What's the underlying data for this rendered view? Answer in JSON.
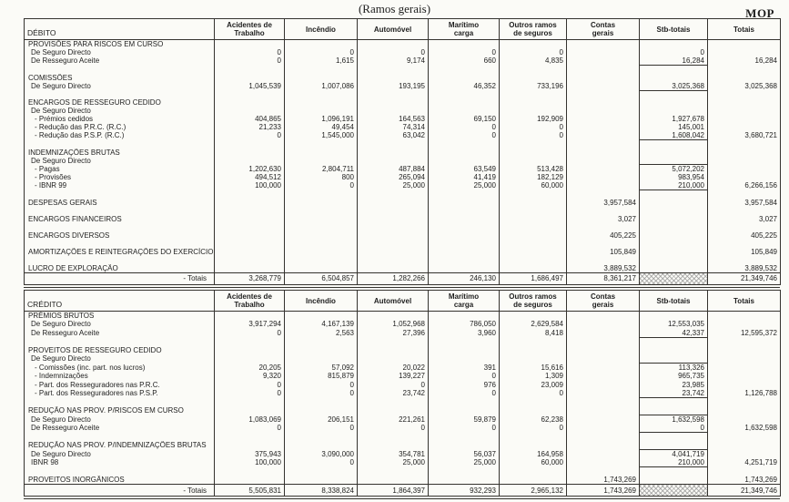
{
  "page": {
    "title": "(Ramos gerais)",
    "currency": "MOP"
  },
  "colors": {
    "paper": "#fbfbf7",
    "ink": "#1e1e1e",
    "line": "#35332f",
    "hatch": "#8f8f8f"
  },
  "columns": [
    "Acidentes de\nTrabalho",
    "Incêndio",
    "Automóvel",
    "Marítimo\ncarga",
    "Outros ramos\nde seguros",
    "Contas\ngerais",
    "Stb-totais",
    "Totais"
  ],
  "tables": [
    {
      "id": "debito",
      "title": "DÉBITO",
      "rows": [
        {
          "type": "section",
          "label": "PROVISÕES PARA RISCOS EM CURSO",
          "values": [
            "",
            "",
            "",
            "",
            "",
            "",
            "",
            ""
          ]
        },
        {
          "type": "item",
          "label": "De Seguro Directo",
          "values": [
            "0",
            "0",
            "0",
            "0",
            "0",
            "",
            "0",
            ""
          ]
        },
        {
          "type": "item",
          "label": "De Resseguro Aceite",
          "values": [
            "0",
            "1,615",
            "9,174",
            "660",
            "4,835",
            "",
            "16,284",
            "16,284"
          ],
          "group_end": true
        },
        {
          "type": "spacer"
        },
        {
          "type": "section",
          "label": "COMISSÕES",
          "values": [
            "",
            "",
            "",
            "",
            "",
            "",
            "",
            ""
          ]
        },
        {
          "type": "item",
          "label": "De Seguro Directo",
          "values": [
            "1,045,539",
            "1,007,086",
            "193,195",
            "46,352",
            "733,196",
            "",
            "3,025,368",
            "3,025,368"
          ],
          "group_end": true
        },
        {
          "type": "spacer"
        },
        {
          "type": "section",
          "label": "ENCARGOS DE RESSEGURO CEDIDO",
          "values": [
            "",
            "",
            "",
            "",
            "",
            "",
            "",
            ""
          ]
        },
        {
          "type": "item",
          "label": "De Seguro Directo",
          "values": [
            "",
            "",
            "",
            "",
            "",
            "",
            "",
            ""
          ]
        },
        {
          "type": "item2",
          "label": "- Prémios cedidos",
          "values": [
            "404,865",
            "1,096,191",
            "164,563",
            "69,150",
            "192,909",
            "",
            "1,927,678",
            ""
          ]
        },
        {
          "type": "item2",
          "label": "- Redução das P.R.C. (R.C.)",
          "values": [
            "21,233",
            "49,454",
            "74,314",
            "0",
            "0",
            "",
            "145,001",
            ""
          ]
        },
        {
          "type": "item2",
          "label": "- Redução das P.S.P. (R.C.)",
          "values": [
            "0",
            "1,545,000",
            "63,042",
            "0",
            "0",
            "",
            "1,608,042",
            "3,680,721"
          ],
          "group_end": true
        },
        {
          "type": "spacer"
        },
        {
          "type": "section",
          "label": "INDEMNIZAÇÕES BRUTAS",
          "values": [
            "",
            "",
            "",
            "",
            "",
            "",
            "",
            ""
          ]
        },
        {
          "type": "item",
          "label": "De Seguro Directo",
          "values": [
            "",
            "",
            "",
            "",
            "",
            "",
            "",
            ""
          ],
          "group_end": true
        },
        {
          "type": "item2",
          "label": "- Pagas",
          "values": [
            "1,202,630",
            "2,804,711",
            "487,884",
            "63,549",
            "513,428",
            "",
            "5,072,202",
            ""
          ]
        },
        {
          "type": "item2",
          "label": "- Provisões",
          "values": [
            "494,512",
            "800",
            "265,094",
            "41,419",
            "182,129",
            "",
            "983,954",
            ""
          ]
        },
        {
          "type": "item2",
          "label": "- IBNR 99",
          "values": [
            "100,000",
            "0",
            "25,000",
            "25,000",
            "60,000",
            "",
            "210,000",
            "6,266,156"
          ],
          "group_end": true
        },
        {
          "type": "spacer"
        },
        {
          "type": "section",
          "label": "DESPESAS GERAIS",
          "values": [
            "",
            "",
            "",
            "",
            "",
            "3,957,584",
            "",
            "3,957,584"
          ]
        },
        {
          "type": "spacer"
        },
        {
          "type": "section",
          "label": "ENCARGOS FINANCEIROS",
          "values": [
            "",
            "",
            "",
            "",
            "",
            "3,027",
            "",
            "3,027"
          ]
        },
        {
          "type": "spacer"
        },
        {
          "type": "section",
          "label": "ENCARGOS DIVERSOS",
          "values": [
            "",
            "",
            "",
            "",
            "",
            "405,225",
            "",
            "405,225"
          ]
        },
        {
          "type": "spacer"
        },
        {
          "type": "section",
          "label": "AMORTIZAÇÕES E REINTEGRAÇÕES DO EXERCÍCIO",
          "values": [
            "",
            "",
            "",
            "",
            "",
            "105,849",
            "",
            "105,849"
          ]
        },
        {
          "type": "spacer"
        },
        {
          "type": "section",
          "label": "LUCRO DE EXPLORAÇÃO",
          "values": [
            "",
            "",
            "",
            "",
            "",
            "3,889,532",
            "",
            "3,889,532"
          ]
        },
        {
          "type": "total",
          "label": "- Totais",
          "values": [
            "3,268,779",
            "6,504,857",
            "1,282,266",
            "246,130",
            "1,686,497",
            "8,361,217",
            "",
            "21,349,746"
          ],
          "hatch_col": 6
        }
      ]
    },
    {
      "id": "credito",
      "title": "CRÉDITO",
      "rows": [
        {
          "type": "section",
          "label": "PRÉMIOS BRUTOS",
          "values": [
            "",
            "",
            "",
            "",
            "",
            "",
            "",
            ""
          ]
        },
        {
          "type": "item",
          "label": "De Seguro Directo",
          "values": [
            "3,917,294",
            "4,167,139",
            "1,052,968",
            "786,050",
            "2,629,584",
            "",
            "12,553,035",
            ""
          ]
        },
        {
          "type": "item",
          "label": "De Resseguro Aceite",
          "values": [
            "0",
            "2,563",
            "27,396",
            "3,960",
            "8,418",
            "",
            "42,337",
            "12,595,372"
          ],
          "group_end": true
        },
        {
          "type": "spacer"
        },
        {
          "type": "section",
          "label": "PROVEITOS DE RESSEGURO CEDIDO",
          "values": [
            "",
            "",
            "",
            "",
            "",
            "",
            "",
            ""
          ]
        },
        {
          "type": "item",
          "label": "De Seguro Directo",
          "values": [
            "",
            "",
            "",
            "",
            "",
            "",
            "",
            ""
          ],
          "group_end": true
        },
        {
          "type": "item2",
          "label": "- Comissões (inc. part. nos lucros)",
          "values": [
            "20,205",
            "57,092",
            "20,022",
            "391",
            "15,616",
            "",
            "113,326",
            ""
          ]
        },
        {
          "type": "item2",
          "label": "- Indemnizações",
          "values": [
            "9,320",
            "815,879",
            "139,227",
            "0",
            "1,309",
            "",
            "965,735",
            ""
          ]
        },
        {
          "type": "item2",
          "label": "- Part. dos Resseguradores nas P.R.C.",
          "values": [
            "0",
            "0",
            "0",
            "976",
            "23,009",
            "",
            "23,985",
            ""
          ]
        },
        {
          "type": "item2",
          "label": "- Part. dos Resseguradores nas P.S.P.",
          "values": [
            "0",
            "0",
            "23,742",
            "0",
            "0",
            "",
            "23,742",
            "1,126,788"
          ],
          "group_end": true
        },
        {
          "type": "spacer"
        },
        {
          "type": "section",
          "label": "REDUÇÃO NAS PROV. P/RISCOS EM CURSO",
          "values": [
            "",
            "",
            "",
            "",
            "",
            "",
            "",
            ""
          ],
          "group_end": true
        },
        {
          "type": "item",
          "label": "De Seguro Directo",
          "values": [
            "1,083,069",
            "206,151",
            "221,261",
            "59,879",
            "62,238",
            "",
            "1,632,598",
            ""
          ]
        },
        {
          "type": "item",
          "label": "De Resseguro Aceite",
          "values": [
            "0",
            "0",
            "0",
            "0",
            "0",
            "",
            "0",
            "1,632,598"
          ],
          "group_end": true
        },
        {
          "type": "spacer"
        },
        {
          "type": "section",
          "label": "REDUÇÃO NAS PROV. P/INDEMNIZAÇÕES BRUTAS",
          "values": [
            "",
            "",
            "",
            "",
            "",
            "",
            "",
            ""
          ],
          "group_end": true
        },
        {
          "type": "item",
          "label": "De Seguro Directo",
          "values": [
            "375,943",
            "3,090,000",
            "354,781",
            "56,037",
            "164,958",
            "",
            "4,041,719",
            ""
          ]
        },
        {
          "type": "item",
          "label": "IBNR 98",
          "values": [
            "100,000",
            "0",
            "25,000",
            "25,000",
            "60,000",
            "",
            "210,000",
            "4,251,719"
          ],
          "group_end": true
        },
        {
          "type": "spacer"
        },
        {
          "type": "section",
          "label": "PROVEITOS INORGÂNICOS",
          "values": [
            "",
            "",
            "",
            "",
            "",
            "1,743,269",
            "",
            "1,743,269"
          ]
        },
        {
          "type": "total",
          "label": "- Totais",
          "values": [
            "5,505,831",
            "8,338,824",
            "1,864,397",
            "932,293",
            "2,965,132",
            "1,743,269",
            "",
            "21,349,746"
          ],
          "hatch_col": 6
        }
      ]
    }
  ]
}
